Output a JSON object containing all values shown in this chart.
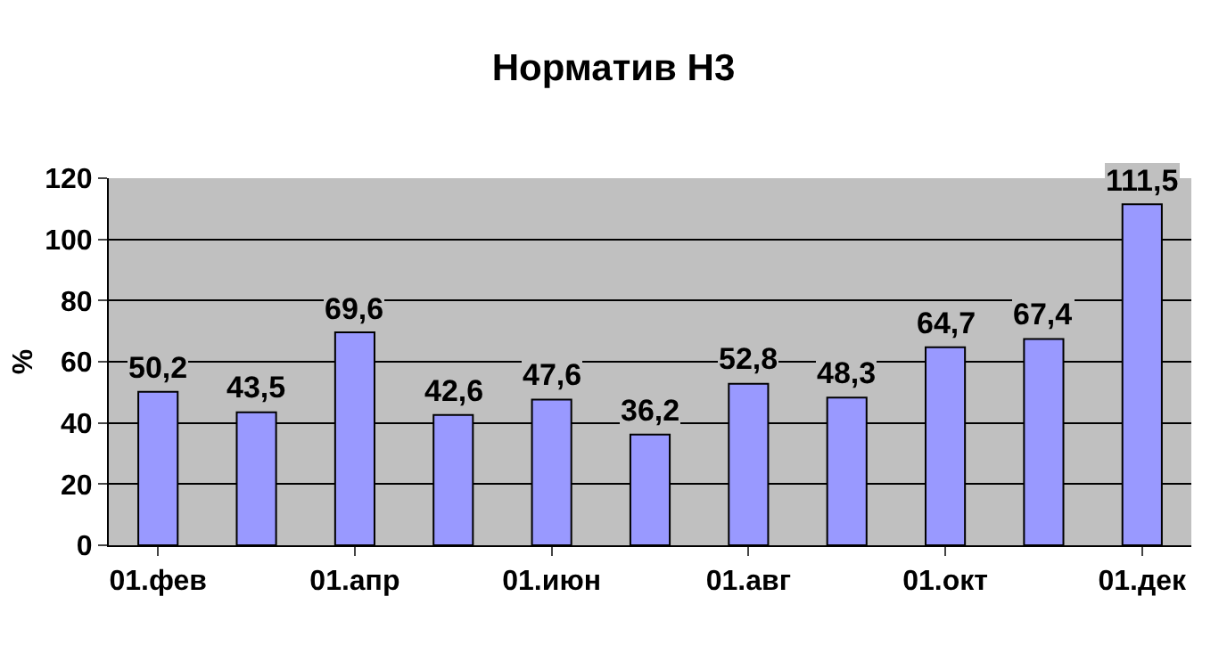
{
  "chart_data": {
    "type": "bar",
    "title": "Норматив Н3",
    "ylabel": "%",
    "categories": [
      "01.фев",
      null,
      "01.апр",
      null,
      "01.июн",
      null,
      "01.авг",
      null,
      "01.окт",
      null,
      "01.дек"
    ],
    "values": [
      50.2,
      43.5,
      69.6,
      42.6,
      47.6,
      36.2,
      52.8,
      48.3,
      64.7,
      67.4,
      111.5
    ],
    "value_labels": [
      "50,2",
      "43,5",
      "69,6",
      "42,6",
      "47,6",
      "36,2",
      "52,8",
      "48,3",
      "64,7",
      "67,4",
      "111,5"
    ],
    "color": "#9999ff",
    "ylim": [
      0,
      120
    ],
    "yticks": [
      0,
      20,
      40,
      60,
      80,
      100,
      120
    ],
    "grid": "y"
  }
}
